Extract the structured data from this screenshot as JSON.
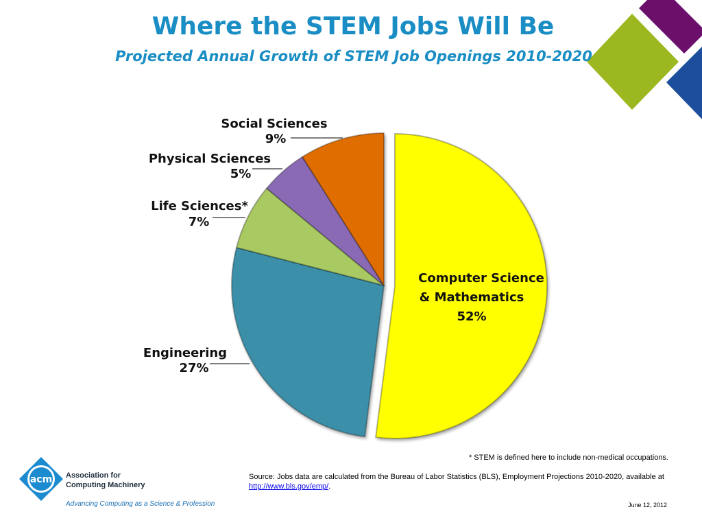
{
  "title": "Where the STEM Jobs Will Be",
  "subtitle": "Projected Annual Growth of STEM Job Openings 2010-2020",
  "chart_data": {
    "type": "pie",
    "title": "Where the STEM Jobs Will Be",
    "subtitle": "Projected Annual Growth of STEM Job Openings 2010-2020",
    "slices": [
      {
        "label": "Computer Science & Mathematics",
        "value": 52,
        "display": "52%",
        "color": "#ffff00"
      },
      {
        "label": "Engineering",
        "value": 27,
        "display": "27%",
        "color": "#3a8fa9"
      },
      {
        "label": "Life Sciences*",
        "value": 7,
        "display": "7%",
        "color": "#a9c963"
      },
      {
        "label": "Physical Sciences",
        "value": 5,
        "display": "5%",
        "color": "#8b6bb5"
      },
      {
        "label": "Social Sciences",
        "value": 9,
        "display": "9%",
        "color": "#e06d00"
      }
    ],
    "exploded_slice": "Computer Science & Mathematics",
    "legend": "none"
  },
  "labels": {
    "cs_line1": "Computer Science",
    "cs_line2": "& Mathematics",
    "cs_pct": "52%",
    "eng_name": "Engineering",
    "eng_pct": "27%",
    "life_name": "Life Sciences*",
    "life_pct": "7%",
    "phys_name": "Physical Sciences",
    "phys_pct": "5%",
    "soc_name": "Social Sciences",
    "soc_pct": "9%"
  },
  "footnote": "* STEM is defined here to include non-medical occupations.",
  "source_text": "Source: Jobs data are calculated from the Bureau of Labor Statistics (BLS), Employment Projections 2010-2020, available at",
  "source_link": "http://www.bls.gov/emp/",
  "source_end": ".",
  "date": "June 12, 2012",
  "logo": {
    "mark": "acm",
    "org_line1": "Association for",
    "org_line2": "Computing Machinery",
    "tagline": "Advancing Computing as a Science & Profession"
  },
  "colors": {
    "title": "#1a8ec4",
    "deco_purple": "#6b0f6b",
    "deco_green": "#9cb820",
    "deco_blue": "#1c4e9c"
  }
}
